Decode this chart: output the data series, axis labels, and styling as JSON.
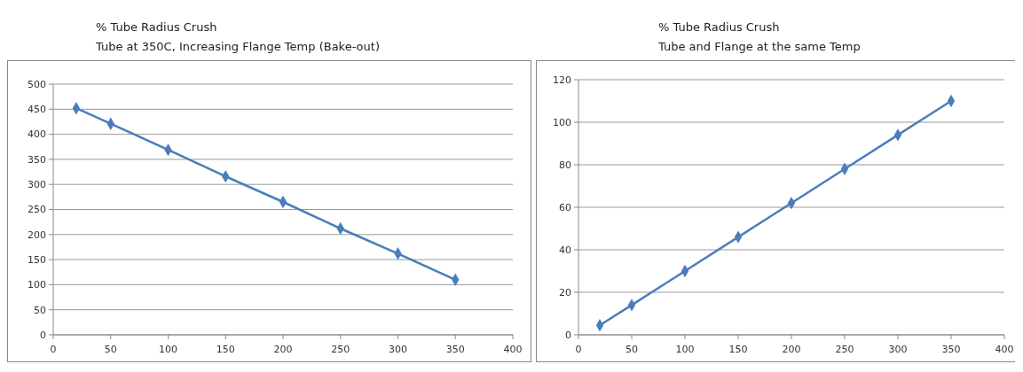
{
  "chart_data": [
    {
      "type": "line",
      "title": "% Tube Radius Crush",
      "subtitle": "Tube at 350C,  Increasing Flange Temp (Bake-out)",
      "x": [
        20,
        50,
        100,
        150,
        200,
        250,
        300,
        350
      ],
      "series": [
        {
          "color": "#4a7ebb",
          "values": [
            452,
            421,
            369,
            316,
            265,
            212,
            162,
            110
          ]
        }
      ],
      "xlim": [
        0,
        400
      ],
      "xticks": [
        0,
        50,
        100,
        150,
        200,
        250,
        300,
        350,
        400
      ],
      "ylim": [
        0,
        500
      ],
      "yticks": [
        0,
        50,
        100,
        150,
        200,
        250,
        300,
        350,
        400,
        450,
        500
      ],
      "grid": "y",
      "marker": "diamond",
      "line_style": "solid"
    },
    {
      "type": "line",
      "title": "% Tube Radius Crush",
      "subtitle": "Tube and Flange at the same Temp",
      "x": [
        20,
        50,
        100,
        150,
        200,
        250,
        300,
        350
      ],
      "series": [
        {
          "color": "#4a7ebb",
          "values": [
            4.5,
            14,
            30,
            46,
            62,
            78,
            94,
            110
          ]
        }
      ],
      "xlim": [
        0,
        400
      ],
      "xticks": [
        0,
        50,
        100,
        150,
        200,
        250,
        300,
        350,
        400
      ],
      "ylim": [
        0,
        120
      ],
      "yticks": [
        0,
        20,
        40,
        60,
        80,
        100,
        120
      ],
      "grid": "y",
      "marker": "diamond",
      "line_style": "solid"
    }
  ]
}
